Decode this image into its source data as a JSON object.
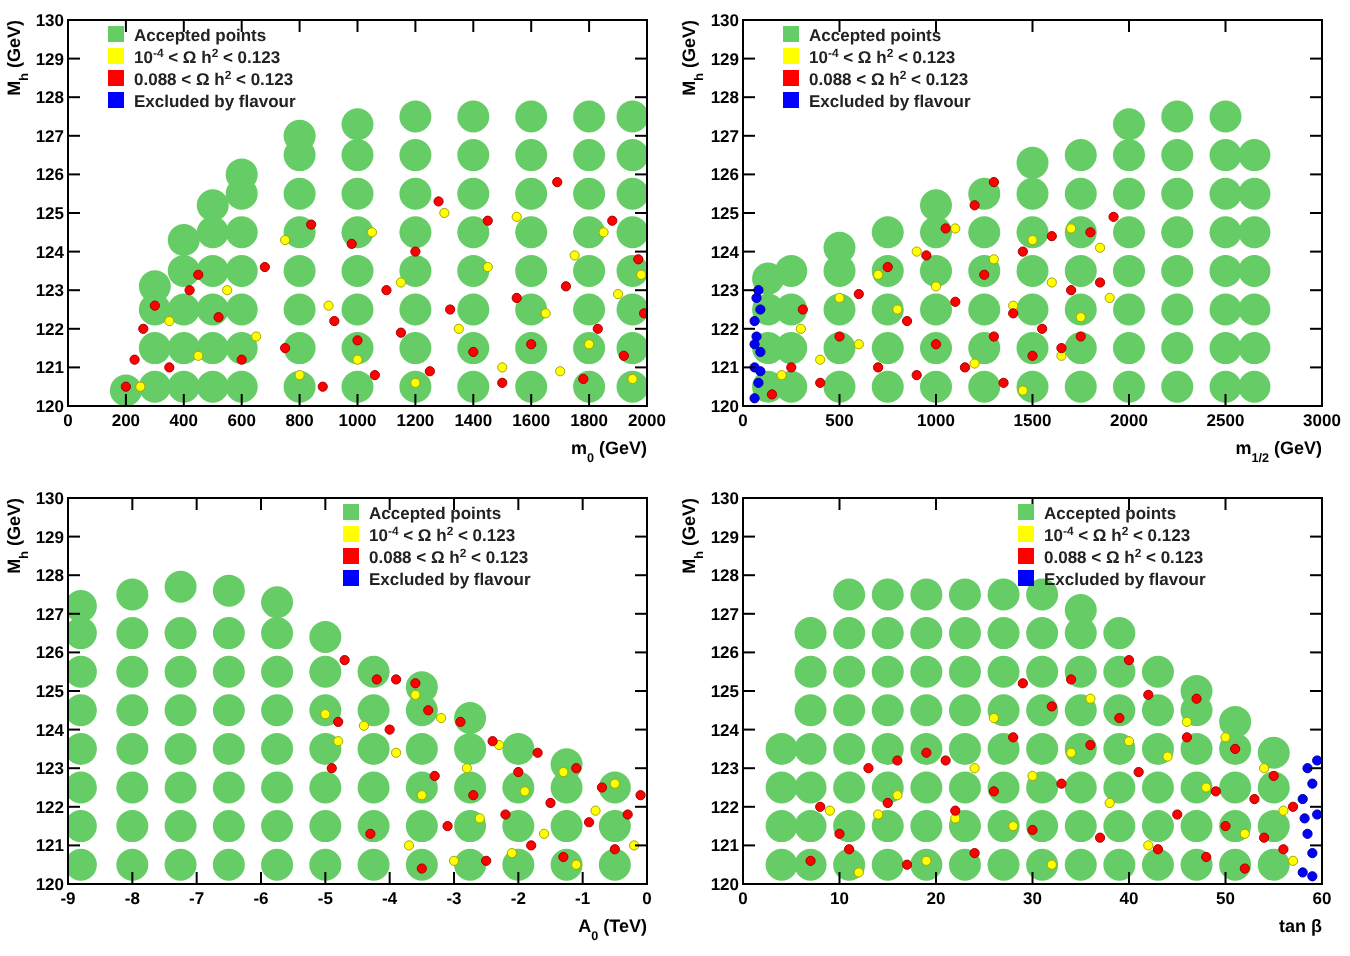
{
  "chart_data": [
    {
      "type": "scatter",
      "xlabel": "m$_{0}$ (GeV)",
      "ylabel": "M$_{h}$ (GeV)",
      "xlim": [
        0,
        2000
      ],
      "ylim": [
        120,
        130
      ],
      "xticks": [
        0,
        200,
        400,
        600,
        800,
        1000,
        1200,
        1400,
        1600,
        1800,
        2000
      ],
      "yticks": [
        120,
        121,
        122,
        123,
        124,
        125,
        126,
        127,
        128,
        129,
        130
      ],
      "legend": "top left",
      "grid": false,
      "marker": "circle",
      "series": [
        {
          "name": "Accepted points",
          "color": "#66cc66",
          "x": [
            200,
            300,
            300,
            300,
            300,
            400,
            400,
            400,
            400,
            400,
            500,
            500,
            500,
            500,
            500,
            500,
            600,
            600,
            600,
            600,
            600,
            600,
            600,
            800,
            800,
            800,
            800,
            800,
            800,
            800,
            800,
            1000,
            1000,
            1000,
            1000,
            1000,
            1000,
            1000,
            1000,
            1200,
            1200,
            1200,
            1200,
            1200,
            1200,
            1200,
            1200,
            1400,
            1400,
            1400,
            1400,
            1400,
            1400,
            1400,
            1400,
            1600,
            1600,
            1600,
            1600,
            1600,
            1600,
            1600,
            1600,
            1800,
            1800,
            1800,
            1800,
            1800,
            1800,
            1800,
            1800,
            1950,
            1950,
            1950,
            1950,
            1950,
            1950,
            1950,
            1950
          ],
          "values": [
            120.4,
            120.5,
            121.5,
            122.5,
            123.1,
            120.5,
            121.5,
            122.5,
            123.5,
            124.3,
            120.5,
            121.5,
            122.5,
            123.5,
            124.5,
            125.2,
            120.5,
            121.5,
            122.5,
            123.5,
            124.5,
            125.5,
            126.0,
            120.5,
            121.5,
            122.5,
            123.5,
            124.5,
            125.5,
            126.5,
            127.0,
            120.5,
            121.5,
            122.5,
            123.5,
            124.5,
            125.5,
            126.5,
            127.3,
            120.5,
            121.5,
            122.5,
            123.5,
            124.5,
            125.5,
            126.5,
            127.5,
            120.5,
            121.5,
            122.5,
            123.5,
            124.5,
            125.5,
            126.5,
            127.5,
            120.5,
            121.5,
            122.5,
            123.5,
            124.5,
            125.5,
            126.5,
            127.5,
            120.5,
            121.5,
            122.5,
            123.5,
            124.5,
            125.5,
            126.5,
            127.5,
            120.5,
            121.5,
            122.5,
            123.5,
            124.5,
            125.5,
            126.5,
            127.5
          ]
        },
        {
          "name": "10$^{-4}$ < Ω h$^{2}$ < 0.123",
          "color": "#ffff00",
          "x": [
            250,
            350,
            450,
            550,
            650,
            750,
            800,
            900,
            1000,
            1050,
            1150,
            1200,
            1300,
            1350,
            1450,
            1500,
            1550,
            1650,
            1700,
            1750,
            1800,
            1850,
            1900,
            1950,
            1980
          ],
          "values": [
            120.5,
            122.2,
            121.3,
            123.0,
            121.8,
            124.3,
            120.8,
            122.6,
            121.2,
            124.5,
            123.2,
            120.6,
            125.0,
            122.0,
            123.6,
            121.0,
            124.9,
            122.4,
            120.9,
            123.9,
            121.6,
            124.5,
            122.9,
            120.7,
            123.4
          ]
        },
        {
          "name": "0.088 < Ω h$^{2}$ < 0.123",
          "color": "#ff0000",
          "x": [
            200,
            230,
            260,
            300,
            350,
            420,
            450,
            520,
            600,
            680,
            750,
            840,
            880,
            920,
            980,
            1000,
            1060,
            1100,
            1150,
            1200,
            1250,
            1280,
            1320,
            1400,
            1450,
            1500,
            1550,
            1600,
            1690,
            1720,
            1780,
            1830,
            1880,
            1920,
            1970,
            1990
          ],
          "values": [
            120.5,
            121.2,
            122.0,
            122.6,
            121.0,
            123.0,
            123.4,
            122.3,
            121.2,
            123.6,
            121.5,
            124.7,
            120.5,
            122.2,
            124.2,
            121.7,
            120.8,
            123.0,
            121.9,
            124.0,
            120.9,
            125.3,
            122.5,
            121.4,
            124.8,
            120.6,
            122.8,
            121.6,
            125.8,
            123.1,
            120.7,
            122.0,
            124.8,
            121.3,
            123.8,
            122.4
          ]
        },
        {
          "name": "Excluded by flavour",
          "color": "#0000ff"
        }
      ]
    },
    {
      "type": "scatter",
      "xlabel": "m$_{1/2}$ (GeV)",
      "ylabel": "M$_{h}$ (GeV)",
      "xlim": [
        0,
        3000
      ],
      "ylim": [
        120,
        130
      ],
      "xticks": [
        0,
        500,
        1000,
        1500,
        2000,
        2500,
        3000
      ],
      "yticks": [
        120,
        121,
        122,
        123,
        124,
        125,
        126,
        127,
        128,
        129,
        130
      ],
      "legend": "top left",
      "grid": false,
      "marker": "circle",
      "series": [
        {
          "name": "Accepted points",
          "color": "#66cc66",
          "x": [
            130,
            130,
            130,
            130,
            250,
            250,
            250,
            250,
            500,
            500,
            500,
            500,
            500,
            750,
            750,
            750,
            750,
            750,
            1000,
            1000,
            1000,
            1000,
            1000,
            1000,
            1250,
            1250,
            1250,
            1250,
            1250,
            1250,
            1500,
            1500,
            1500,
            1500,
            1500,
            1500,
            1500,
            1750,
            1750,
            1750,
            1750,
            1750,
            1750,
            1750,
            2000,
            2000,
            2000,
            2000,
            2000,
            2000,
            2000,
            2000,
            2250,
            2250,
            2250,
            2250,
            2250,
            2250,
            2250,
            2250,
            2500,
            2500,
            2500,
            2500,
            2500,
            2500,
            2500,
            2500,
            2650,
            2650,
            2650,
            2650,
            2650,
            2650,
            2650
          ],
          "values": [
            120.5,
            121.5,
            122.5,
            123.3,
            120.5,
            121.5,
            122.5,
            123.5,
            120.5,
            121.5,
            122.5,
            123.5,
            124.1,
            120.5,
            121.5,
            122.5,
            123.5,
            124.5,
            120.5,
            121.5,
            122.5,
            123.5,
            124.5,
            125.2,
            120.5,
            121.5,
            122.5,
            123.5,
            124.5,
            125.5,
            120.5,
            121.5,
            122.5,
            123.5,
            124.5,
            125.5,
            126.3,
            120.5,
            121.5,
            122.5,
            123.5,
            124.5,
            125.5,
            126.5,
            120.5,
            121.5,
            122.5,
            123.5,
            124.5,
            125.5,
            126.5,
            127.3,
            120.5,
            121.5,
            122.5,
            123.5,
            124.5,
            125.5,
            126.5,
            127.5,
            120.5,
            121.5,
            122.5,
            123.5,
            124.5,
            125.5,
            126.5,
            127.5,
            120.5,
            121.5,
            122.5,
            123.5,
            124.5,
            125.5,
            126.5
          ]
        },
        {
          "name": "10$^{-4}$ < Ω h$^{2}$ < 0.123",
          "color": "#ffff00",
          "x": [
            200,
            300,
            400,
            500,
            600,
            700,
            800,
            900,
            1000,
            1100,
            1200,
            1300,
            1400,
            1500,
            1600,
            1700,
            1750,
            1850,
            1900,
            1450,
            1650
          ],
          "values": [
            120.8,
            122.0,
            121.2,
            122.8,
            121.6,
            123.4,
            122.5,
            124.0,
            123.1,
            124.6,
            121.1,
            123.8,
            122.6,
            124.3,
            123.2,
            124.6,
            122.3,
            124.1,
            122.8,
            120.4,
            121.3
          ]
        },
        {
          "name": "0.088 < Ω h$^{2}$ < 0.123",
          "color": "#ff0000",
          "x": [
            150,
            250,
            310,
            400,
            500,
            600,
            700,
            750,
            850,
            900,
            950,
            1000,
            1050,
            1100,
            1150,
            1200,
            1250,
            1300,
            1300,
            1350,
            1400,
            1450,
            1500,
            1550,
            1600,
            1650,
            1700,
            1750,
            1800,
            1850,
            1920
          ],
          "values": [
            120.3,
            121.0,
            122.5,
            120.6,
            121.8,
            122.9,
            121.0,
            123.6,
            122.2,
            120.8,
            123.9,
            121.6,
            124.6,
            122.7,
            121.0,
            125.2,
            123.4,
            125.8,
            121.8,
            120.6,
            122.4,
            124.0,
            121.3,
            122.0,
            124.4,
            121.5,
            123.0,
            121.8,
            124.5,
            123.2,
            124.9
          ]
        },
        {
          "name": "Excluded by flavour",
          "color": "#0000ff",
          "x": [
            60,
            80,
            60,
            90,
            70,
            60,
            90,
            70,
            80,
            60,
            90
          ],
          "values": [
            120.2,
            120.6,
            121.0,
            121.4,
            121.8,
            122.2,
            122.5,
            122.8,
            123.0,
            121.6,
            120.9
          ]
        }
      ]
    },
    {
      "type": "scatter",
      "xlabel": "A$_{0}$ (TeV)",
      "ylabel": "M$_{h}$ (GeV)",
      "xlim": [
        -9,
        0
      ],
      "ylim": [
        120,
        130
      ],
      "xticks": [
        -9,
        -8,
        -7,
        -6,
        -5,
        -4,
        -3,
        -2,
        -1,
        0
      ],
      "yticks": [
        120,
        121,
        122,
        123,
        124,
        125,
        126,
        127,
        128,
        129,
        130
      ],
      "legend": "top right",
      "grid": false,
      "marker": "circle",
      "series": [
        {
          "name": "Accepted points",
          "color": "#66cc66",
          "x": [
            -8.8,
            -8.8,
            -8.8,
            -8.8,
            -8.8,
            -8.8,
            -8.8,
            -8.8,
            -8,
            -8,
            -8,
            -8,
            -8,
            -8,
            -8,
            -8,
            -7.25,
            -7.25,
            -7.25,
            -7.25,
            -7.25,
            -7.25,
            -7.25,
            -7.25,
            -6.5,
            -6.5,
            -6.5,
            -6.5,
            -6.5,
            -6.5,
            -6.5,
            -6.5,
            -5.75,
            -5.75,
            -5.75,
            -5.75,
            -5.75,
            -5.75,
            -5.75,
            -5.75,
            -5,
            -5,
            -5,
            -5,
            -5,
            -5,
            -5,
            -4.25,
            -4.25,
            -4.25,
            -4.25,
            -4.25,
            -4.25,
            -3.5,
            -3.5,
            -3.5,
            -3.5,
            -3.5,
            -3.5,
            -2.75,
            -2.75,
            -2.75,
            -2.75,
            -2.75,
            -2,
            -2,
            -2,
            -2,
            -1.25,
            -1.25,
            -1.25,
            -1.25,
            -0.5,
            -0.5,
            -0.5
          ],
          "values": [
            120.5,
            121.5,
            122.5,
            123.5,
            124.5,
            125.5,
            126.5,
            127.2,
            120.5,
            121.5,
            122.5,
            123.5,
            124.5,
            125.5,
            126.5,
            127.5,
            120.5,
            121.5,
            122.5,
            123.5,
            124.5,
            125.5,
            126.5,
            127.7,
            120.5,
            121.5,
            122.5,
            123.5,
            124.5,
            125.5,
            126.5,
            127.6,
            120.5,
            121.5,
            122.5,
            123.5,
            124.5,
            125.5,
            126.5,
            127.3,
            120.5,
            121.5,
            122.5,
            123.5,
            124.5,
            125.5,
            126.4,
            120.5,
            121.5,
            122.5,
            123.5,
            124.5,
            125.5,
            120.5,
            121.5,
            122.5,
            123.5,
            124.5,
            125.1,
            120.5,
            121.5,
            122.5,
            123.5,
            124.3,
            120.5,
            121.5,
            122.5,
            123.5,
            120.5,
            121.5,
            122.5,
            123.1,
            120.5,
            121.5,
            122.5
          ]
        },
        {
          "name": "10$^{-4}$ < Ω h$^{2}$ < 0.123",
          "color": "#ffff00",
          "x": [
            -5,
            -4.8,
            -4.4,
            -3.9,
            -3.7,
            -3.5,
            -3.2,
            -3.0,
            -2.8,
            -2.6,
            -2.3,
            -2.1,
            -1.9,
            -1.6,
            -1.3,
            -1.1,
            -0.8,
            -0.5,
            -0.2,
            -3.6
          ],
          "values": [
            124.4,
            123.7,
            124.1,
            123.4,
            121.0,
            122.3,
            124.3,
            120.6,
            123.0,
            121.7,
            123.6,
            120.8,
            122.4,
            121.3,
            122.9,
            120.5,
            121.9,
            122.6,
            121.0,
            124.9
          ]
        },
        {
          "name": "0.088 < Ω h$^{2}$ < 0.123",
          "color": "#ff0000",
          "x": [
            -4.9,
            -4.7,
            -4.3,
            -4.2,
            -4.0,
            -3.9,
            -3.6,
            -3.4,
            -3.3,
            -3.1,
            -2.9,
            -2.7,
            -2.5,
            -2.4,
            -2.2,
            -2.0,
            -1.8,
            -1.7,
            -1.5,
            -1.3,
            -1.1,
            -0.9,
            -0.7,
            -0.5,
            -0.3,
            -0.1,
            -3.5,
            -4.8
          ],
          "values": [
            123.0,
            125.8,
            121.3,
            125.3,
            124.0,
            125.3,
            125.2,
            124.5,
            122.8,
            121.5,
            124.2,
            122.3,
            120.6,
            123.7,
            121.8,
            122.9,
            121.0,
            123.4,
            122.1,
            120.7,
            123.0,
            121.6,
            122.5,
            120.9,
            121.8,
            122.3,
            120.4,
            124.2
          ]
        },
        {
          "name": "Excluded by flavour",
          "color": "#0000ff"
        }
      ]
    },
    {
      "type": "scatter",
      "xlabel": "tan β",
      "ylabel": "M$_{h}$ (GeV)",
      "xlim": [
        0,
        60
      ],
      "ylim": [
        120,
        130
      ],
      "xticks": [
        0,
        10,
        20,
        30,
        40,
        50,
        60
      ],
      "yticks": [
        120,
        121,
        122,
        123,
        124,
        125,
        126,
        127,
        128,
        129,
        130
      ],
      "legend": "top right",
      "grid": false,
      "marker": "circle",
      "series": [
        {
          "name": "Accepted points",
          "color": "#66cc66",
          "x": [
            4,
            4,
            4,
            4,
            7,
            7,
            7,
            7,
            7,
            7,
            7,
            11,
            11,
            11,
            11,
            11,
            11,
            11,
            11,
            15,
            15,
            15,
            15,
            15,
            15,
            15,
            15,
            19,
            19,
            19,
            19,
            19,
            19,
            19,
            19,
            23,
            23,
            23,
            23,
            23,
            23,
            23,
            23,
            27,
            27,
            27,
            27,
            27,
            27,
            27,
            27,
            31,
            31,
            31,
            31,
            31,
            31,
            31,
            31,
            35,
            35,
            35,
            35,
            35,
            35,
            35,
            35,
            39,
            39,
            39,
            39,
            39,
            39,
            39,
            43,
            43,
            43,
            43,
            43,
            43,
            47,
            47,
            47,
            47,
            47,
            47,
            51,
            51,
            51,
            51,
            51,
            55,
            55,
            55,
            55
          ],
          "values": [
            120.5,
            121.5,
            122.5,
            123.5,
            120.5,
            121.5,
            122.5,
            123.5,
            124.5,
            125.5,
            126.5,
            120.5,
            121.5,
            122.5,
            123.5,
            124.5,
            125.5,
            126.5,
            127.5,
            120.5,
            121.5,
            122.5,
            123.5,
            124.5,
            125.5,
            126.5,
            127.5,
            120.5,
            121.5,
            122.5,
            123.5,
            124.5,
            125.5,
            126.5,
            127.5,
            120.5,
            121.5,
            122.5,
            123.5,
            124.5,
            125.5,
            126.5,
            127.5,
            120.5,
            121.5,
            122.5,
            123.5,
            124.5,
            125.5,
            126.5,
            127.5,
            120.5,
            121.5,
            122.5,
            123.5,
            124.5,
            125.5,
            126.5,
            127.5,
            120.5,
            121.5,
            122.5,
            123.5,
            124.5,
            125.5,
            126.5,
            127.1,
            120.5,
            121.5,
            122.5,
            123.5,
            124.5,
            125.5,
            126.5,
            120.5,
            121.5,
            122.5,
            123.5,
            124.5,
            125.5,
            120.5,
            121.5,
            122.5,
            123.5,
            124.5,
            125.0,
            120.5,
            121.5,
            122.5,
            123.5,
            124.2,
            120.5,
            121.5,
            122.5,
            123.4
          ]
        },
        {
          "name": "10$^{-4}$ < Ω h$^{2}$ < 0.123",
          "color": "#ffff00",
          "x": [
            9,
            12,
            14,
            16,
            19,
            22,
            24,
            26,
            28,
            30,
            32,
            34,
            36,
            38,
            40,
            42,
            44,
            46,
            48,
            50,
            52,
            54,
            56,
            57
          ],
          "values": [
            121.9,
            120.3,
            121.8,
            122.3,
            120.6,
            121.7,
            123.0,
            124.3,
            121.5,
            122.8,
            120.5,
            123.4,
            124.8,
            122.1,
            123.7,
            121.0,
            123.3,
            124.2,
            122.5,
            123.8,
            121.3,
            123.0,
            121.9,
            120.6
          ]
        },
        {
          "name": "0.088 < Ω h$^{2}$ < 0.123",
          "color": "#ff0000",
          "x": [
            7,
            8,
            10,
            11,
            13,
            15,
            16,
            17,
            19,
            21,
            22,
            24,
            26,
            28,
            29,
            30,
            32,
            33,
            34,
            36,
            37,
            39,
            40,
            41,
            42,
            43,
            45,
            46,
            47,
            48,
            49,
            50,
            51,
            52,
            53,
            54,
            55,
            56,
            57
          ],
          "values": [
            120.6,
            122.0,
            121.3,
            120.9,
            123.0,
            122.1,
            123.2,
            120.5,
            123.4,
            123.2,
            121.9,
            120.8,
            122.4,
            123.8,
            125.2,
            121.4,
            124.6,
            122.6,
            125.3,
            123.6,
            121.2,
            124.3,
            125.8,
            122.9,
            124.9,
            120.9,
            121.8,
            123.8,
            124.8,
            120.7,
            122.4,
            121.5,
            123.5,
            120.4,
            122.2,
            121.2,
            122.8,
            120.9,
            122.0
          ]
        },
        {
          "name": "Excluded by flavour",
          "color": "#0000ff",
          "x": [
            58,
            59,
            58.5,
            59.5,
            58,
            59,
            58.5,
            59.5,
            59,
            58.2
          ],
          "values": [
            120.3,
            120.8,
            121.3,
            121.8,
            122.2,
            122.6,
            123.0,
            123.2,
            120.2,
            121.7
          ]
        }
      ]
    }
  ]
}
